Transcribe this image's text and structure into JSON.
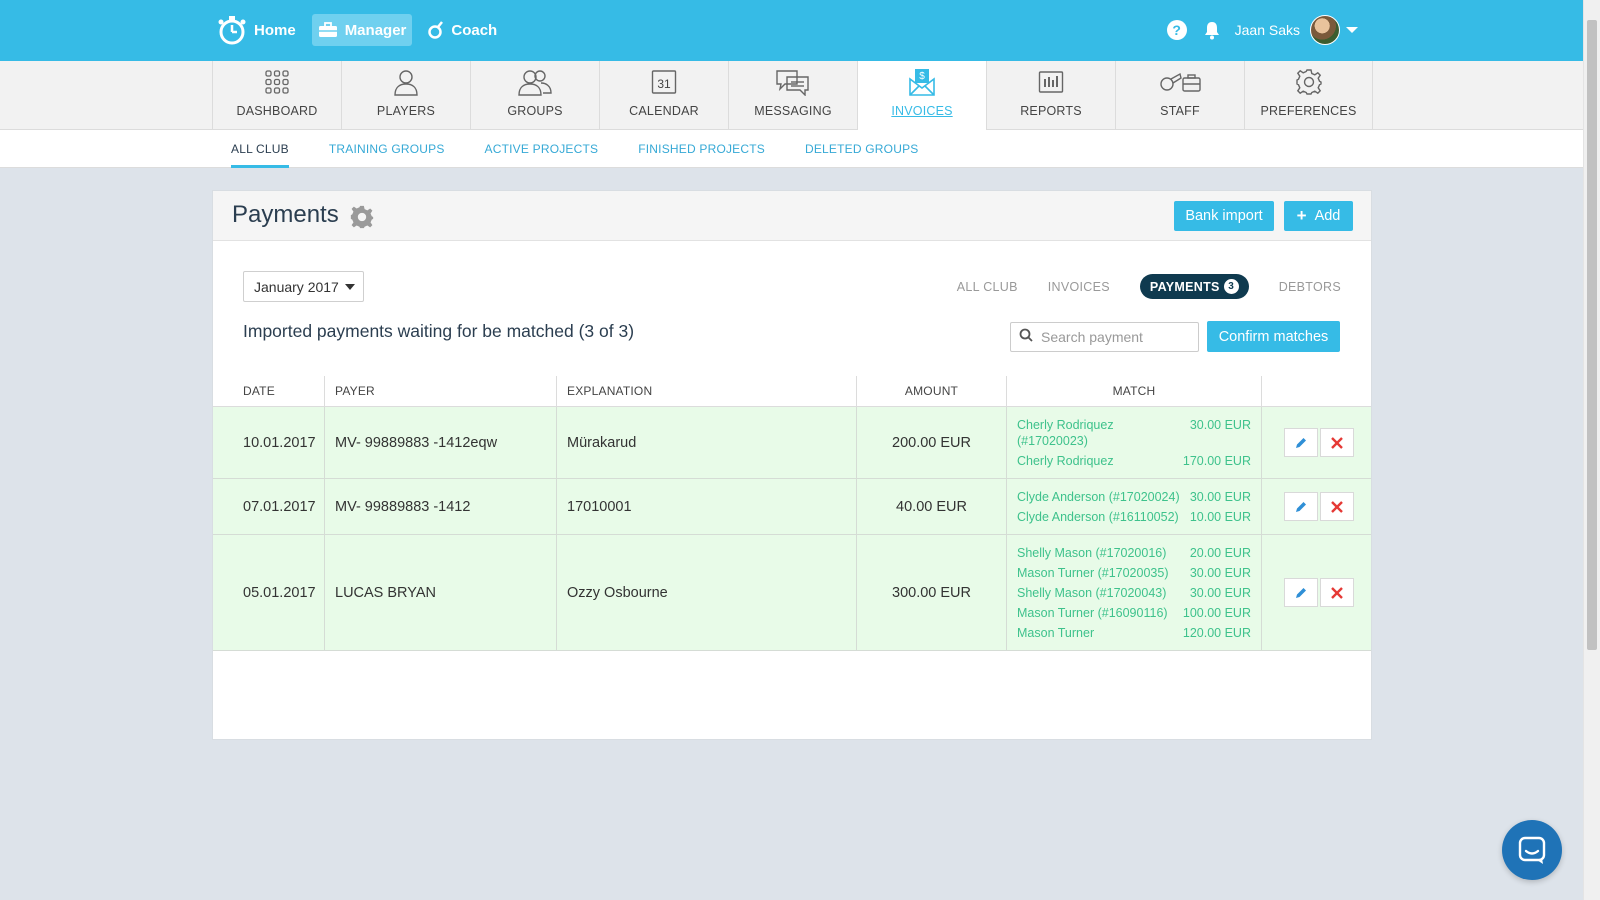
{
  "topbar": {
    "home_label": "Home",
    "manager_label": "Manager",
    "coach_label": "Coach",
    "help_label": "?",
    "user_name": "Jaan Saks"
  },
  "modules": {
    "items": [
      {
        "label": "DASHBOARD",
        "icon": "grid-icon"
      },
      {
        "label": "PLAYERS",
        "icon": "person-icon"
      },
      {
        "label": "GROUPS",
        "icon": "people-icon"
      },
      {
        "label": "CALENDAR",
        "icon": "calendar-icon",
        "day": "31"
      },
      {
        "label": "MESSAGING",
        "icon": "chat-icon"
      },
      {
        "label": "INVOICES",
        "icon": "invoice-icon"
      },
      {
        "label": "REPORTS",
        "icon": "bar-chart-icon"
      },
      {
        "label": "STAFF",
        "icon": "whistle-icon"
      },
      {
        "label": "PREFERENCES",
        "icon": "gear-icon"
      }
    ],
    "active": "INVOICES"
  },
  "subnav": {
    "items": [
      "ALL CLUB",
      "TRAINING GROUPS",
      "ACTIVE PROJECTS",
      "FINISHED PROJECTS",
      "DELETED GROUPS"
    ],
    "active": "ALL CLUB"
  },
  "panel": {
    "title": "Payments",
    "bank_import_label": "Bank import",
    "add_label": "Add",
    "month": "January 2017",
    "view_tabs": {
      "all_club": "ALL CLUB",
      "invoices": "INVOICES",
      "payments": "PAYMENTS",
      "payments_count": "3",
      "debtors": "DEBTORS"
    },
    "heading": "Imported payments waiting for be matched (3 of 3)",
    "search_placeholder": "Search payment",
    "confirm_label": "Confirm matches"
  },
  "table": {
    "headers": {
      "date": "DATE",
      "payer": "PAYER",
      "explanation": "EXPLANATION",
      "amount": "AMOUNT",
      "match": "MATCH"
    },
    "rows": [
      {
        "date": "10.01.2017",
        "payer": "MV- 99889883 -1412eqw",
        "explanation": "Mürakarud",
        "amount": "200.00 EUR",
        "matches": [
          {
            "name": "Cherly Rodriquez (#17020023)",
            "amount": "30.00 EUR"
          },
          {
            "name": "Cherly Rodriquez",
            "amount": "170.00 EUR"
          }
        ]
      },
      {
        "date": "07.01.2017",
        "payer": "MV- 99889883 -1412",
        "explanation": "17010001",
        "amount": "40.00 EUR",
        "matches": [
          {
            "name": "Clyde Anderson (#17020024)",
            "amount": "30.00 EUR"
          },
          {
            "name": "Clyde Anderson (#16110052)",
            "amount": "10.00 EUR"
          }
        ]
      },
      {
        "date": "05.01.2017",
        "payer": "LUCAS BRYAN",
        "explanation": "Ozzy Osbourne",
        "amount": "300.00 EUR",
        "matches": [
          {
            "name": "Shelly Mason (#17020016)",
            "amount": "20.00 EUR"
          },
          {
            "name": "Mason Turner (#17020035)",
            "amount": "30.00 EUR"
          },
          {
            "name": "Shelly Mason (#17020043)",
            "amount": "30.00 EUR"
          },
          {
            "name": "Mason Turner (#16090116)",
            "amount": "100.00 EUR"
          },
          {
            "name": "Mason Turner",
            "amount": "120.00 EUR"
          }
        ]
      }
    ]
  },
  "colors": {
    "brand": "#36bbe6",
    "dark_tab": "#0f3a4f",
    "match_text": "#3ec28c",
    "row_bg": "#e8fbe8",
    "delete": "#e53935"
  }
}
